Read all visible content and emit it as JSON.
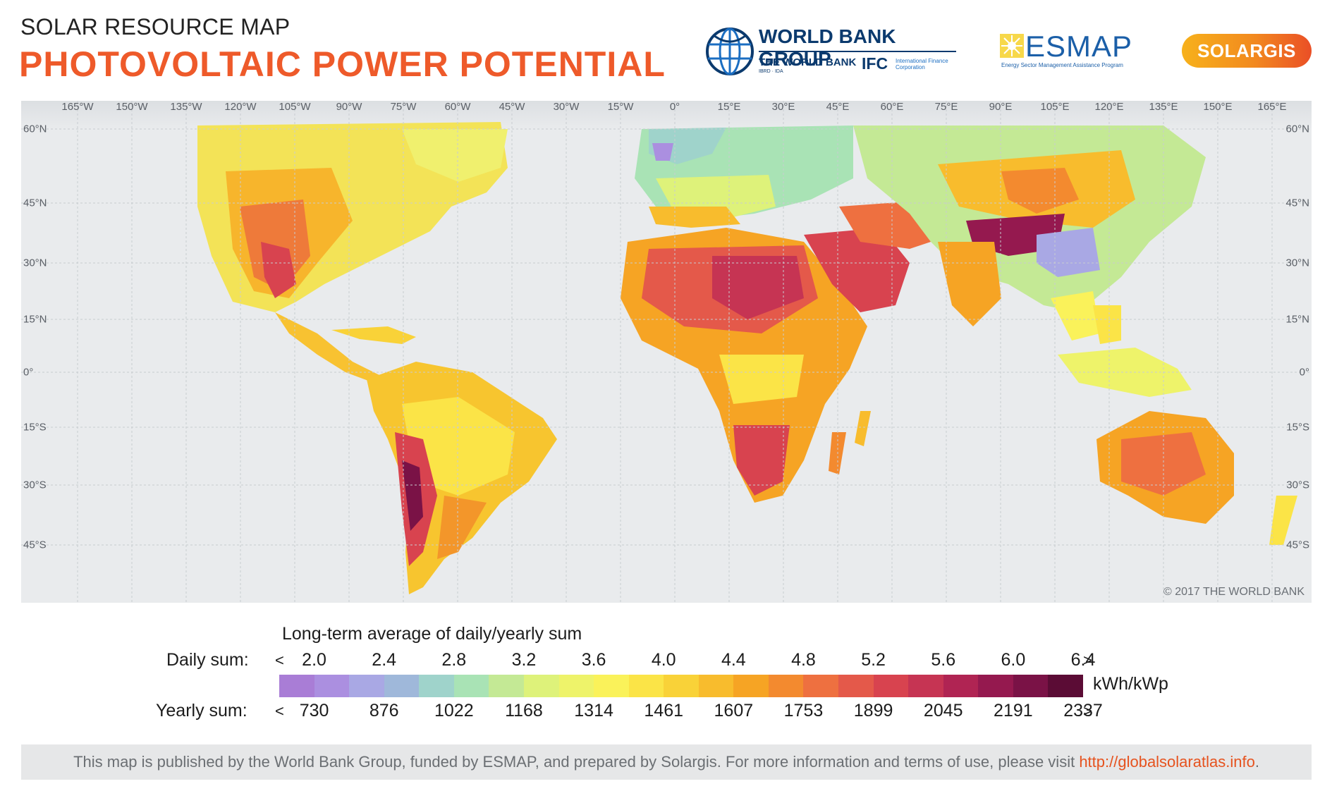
{
  "header": {
    "kicker": "SOLAR RESOURCE MAP",
    "title": "PHOTOVOLTAIC POWER POTENTIAL"
  },
  "logos": {
    "world_bank": {
      "group": "WORLD BANK GROUP",
      "bank": "THE WORLD BANK",
      "bank_sub": "IBRD · IDA",
      "ifc": "IFC",
      "ifc_sub": "International Finance Corporation"
    },
    "esmap": {
      "word": "ESMAP",
      "sub": "Energy Sector Management Assistance Program"
    },
    "solargis": {
      "word": "SOLARGIS"
    }
  },
  "map": {
    "longitude_labels": [
      "165°W",
      "150°W",
      "135°W",
      "120°W",
      "105°W",
      "90°W",
      "75°W",
      "60°W",
      "45°W",
      "30°W",
      "15°W",
      "0°",
      "15°E",
      "30°E",
      "45°E",
      "60°E",
      "75°E",
      "90°E",
      "105°E",
      "120°E",
      "135°E",
      "150°E",
      "165°E"
    ],
    "latitude_labels": [
      "60°N",
      "45°N",
      "30°N",
      "15°N",
      "0°",
      "15°S",
      "30°S",
      "45°S"
    ],
    "copyright": "© 2017 THE WORLD BANK"
  },
  "legend": {
    "title": "Long-term average of daily/yearly sum",
    "daily_label": "Daily sum:",
    "yearly_label": "Yearly sum:",
    "less": "<",
    "more": ">",
    "daily_ticks": [
      "2.0",
      "2.4",
      "2.8",
      "3.2",
      "3.6",
      "4.0",
      "4.4",
      "4.8",
      "5.2",
      "5.6",
      "6.0",
      "6.4"
    ],
    "yearly_ticks": [
      "730",
      "876",
      "1022",
      "1168",
      "1314",
      "1461",
      "1607",
      "1753",
      "1899",
      "2045",
      "2191",
      "2337"
    ],
    "unit": "kWh/kWp",
    "colors": [
      "#a97dd6",
      "#ab8fe0",
      "#a9a8e4",
      "#9fb8da",
      "#9fd3cb",
      "#a9e3b5",
      "#c4e995",
      "#def27a",
      "#eef36a",
      "#faf25a",
      "#fbe447",
      "#f9d238",
      "#f8bc2d",
      "#f6a424",
      "#f38a2f",
      "#ee7040",
      "#e4594a",
      "#d8434f",
      "#c63453",
      "#b02453",
      "#95194f",
      "#7a1246",
      "#5b0c35"
    ]
  },
  "footer": {
    "text": "This map is published by the World Bank Group, funded by ESMAP, and prepared by Solargis. For more information and terms of use, please visit ",
    "link": "http://globalsolaratlas.info",
    "tail": "."
  }
}
